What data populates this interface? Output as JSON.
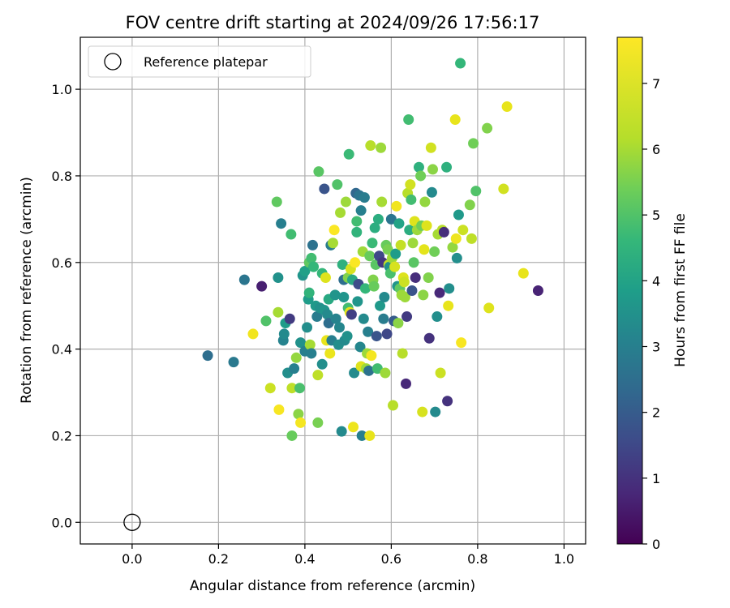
{
  "chart_data": {
    "type": "scatter",
    "title": "FOV centre drift starting at 2024/09/26 17:56:17",
    "xlabel": "Angular distance from reference (arcmin)",
    "ylabel": "Rotation from reference (arcmin)",
    "xlim": [
      -0.12,
      1.05
    ],
    "ylim": [
      -0.05,
      1.12
    ],
    "x_ticks": [
      0.0,
      0.2,
      0.4,
      0.6,
      0.8,
      1.0
    ],
    "y_ticks": [
      0.0,
      0.2,
      0.4,
      0.6,
      0.8,
      1.0
    ],
    "x_tick_labels": [
      "0.0",
      "0.2",
      "0.4",
      "0.6",
      "0.8",
      "1.0"
    ],
    "y_tick_labels": [
      "0.0",
      "0.2",
      "0.4",
      "0.6",
      "0.8",
      "1.0"
    ],
    "grid": true,
    "legend": {
      "placement": "top-left",
      "entries": [
        "Reference platepar"
      ]
    },
    "reference_point": {
      "x": 0.0,
      "y": 0.0,
      "label": "Reference platepar"
    },
    "colorbar": {
      "label": "Hours from first FF file",
      "colormap": "viridis",
      "range": [
        0,
        7.7
      ],
      "ticks": [
        0,
        1,
        2,
        3,
        4,
        5,
        6,
        7
      ],
      "tick_labels": [
        "0",
        "1",
        "2",
        "3",
        "4",
        "5",
        "6",
        "7"
      ]
    },
    "series": [
      {
        "points": [
          [
            0.175,
            0.385,
            2.5
          ],
          [
            0.235,
            0.37,
            2.8
          ],
          [
            0.26,
            0.56,
            2.7
          ],
          [
            0.28,
            0.435,
            7.3
          ],
          [
            0.3,
            0.545,
            0.6
          ],
          [
            0.31,
            0.465,
            5.0
          ],
          [
            0.32,
            0.31,
            6.5
          ],
          [
            0.335,
            0.74,
            5.2
          ],
          [
            0.338,
            0.485,
            6.0
          ],
          [
            0.338,
            0.565,
            3.5
          ],
          [
            0.34,
            0.26,
            7.5
          ],
          [
            0.345,
            0.69,
            3.0
          ],
          [
            0.35,
            0.42,
            3.1
          ],
          [
            0.352,
            0.435,
            3.3
          ],
          [
            0.355,
            0.46,
            3.8
          ],
          [
            0.36,
            0.345,
            3.4
          ],
          [
            0.365,
            0.47,
            1.2
          ],
          [
            0.368,
            0.665,
            4.8
          ],
          [
            0.37,
            0.2,
            5.3
          ],
          [
            0.37,
            0.31,
            6.3
          ],
          [
            0.375,
            0.355,
            3.0
          ],
          [
            0.38,
            0.38,
            5.8
          ],
          [
            0.385,
            0.25,
            5.7
          ],
          [
            0.388,
            0.31,
            4.9
          ],
          [
            0.39,
            0.23,
            7.4
          ],
          [
            0.39,
            0.415,
            3.5
          ],
          [
            0.395,
            0.57,
            3.6
          ],
          [
            0.4,
            0.58,
            3.9
          ],
          [
            0.4,
            0.395,
            3.0
          ],
          [
            0.405,
            0.45,
            3.4
          ],
          [
            0.408,
            0.515,
            3.8
          ],
          [
            0.41,
            0.53,
            4.5
          ],
          [
            0.41,
            0.6,
            5.2
          ],
          [
            0.412,
            0.41,
            6.0
          ],
          [
            0.415,
            0.39,
            3.0
          ],
          [
            0.415,
            0.61,
            4.8
          ],
          [
            0.418,
            0.64,
            2.6
          ],
          [
            0.42,
            0.59,
            4.6
          ],
          [
            0.425,
            0.5,
            3.7
          ],
          [
            0.428,
            0.475,
            2.9
          ],
          [
            0.43,
            0.23,
            5.5
          ],
          [
            0.43,
            0.34,
            6.3
          ],
          [
            0.432,
            0.81,
            5.1
          ],
          [
            0.435,
            0.495,
            3.5
          ],
          [
            0.44,
            0.365,
            3.4
          ],
          [
            0.44,
            0.575,
            4.6
          ],
          [
            0.445,
            0.49,
            3.6
          ],
          [
            0.445,
            0.77,
            1.8
          ],
          [
            0.448,
            0.565,
            6.8
          ],
          [
            0.45,
            0.42,
            7.0
          ],
          [
            0.452,
            0.48,
            3.3
          ],
          [
            0.455,
            0.515,
            4.2
          ],
          [
            0.455,
            0.46,
            2.5
          ],
          [
            0.458,
            0.39,
            7.1
          ],
          [
            0.46,
            0.64,
            2.9
          ],
          [
            0.462,
            0.42,
            3.0
          ],
          [
            0.465,
            0.645,
            6.0
          ],
          [
            0.468,
            0.675,
            7.6
          ],
          [
            0.47,
            0.525,
            3.6
          ],
          [
            0.472,
            0.47,
            3.1
          ],
          [
            0.475,
            0.78,
            5.0
          ],
          [
            0.478,
            0.41,
            3.4
          ],
          [
            0.48,
            0.45,
            3.2
          ],
          [
            0.482,
            0.715,
            6.0
          ],
          [
            0.485,
            0.21,
            3.3
          ],
          [
            0.487,
            0.595,
            4.4
          ],
          [
            0.49,
            0.52,
            3.6
          ],
          [
            0.49,
            0.56,
            2.5
          ],
          [
            0.492,
            0.42,
            3.3
          ],
          [
            0.495,
            0.74,
            5.9
          ],
          [
            0.498,
            0.43,
            3.5
          ],
          [
            0.5,
            0.495,
            4.8
          ],
          [
            0.5,
            0.565,
            5.6
          ],
          [
            0.502,
            0.85,
            4.7
          ],
          [
            0.504,
            0.485,
            6.9
          ],
          [
            0.506,
            0.585,
            6.7
          ],
          [
            0.508,
            0.48,
            1.3
          ],
          [
            0.51,
            0.56,
            4.2
          ],
          [
            0.512,
            0.22,
            7.2
          ],
          [
            0.514,
            0.345,
            3.3
          ],
          [
            0.516,
            0.6,
            7.6
          ],
          [
            0.518,
            0.76,
            2.3
          ],
          [
            0.52,
            0.67,
            4.5
          ],
          [
            0.52,
            0.695,
            4.8
          ],
          [
            0.522,
            0.51,
            3.6
          ],
          [
            0.524,
            0.55,
            1.6
          ],
          [
            0.526,
            0.755,
            2.7
          ],
          [
            0.528,
            0.405,
            3.2
          ],
          [
            0.53,
            0.72,
            3.0
          ],
          [
            0.53,
            0.36,
            6.8
          ],
          [
            0.532,
            0.2,
            3.0
          ],
          [
            0.534,
            0.625,
            5.9
          ],
          [
            0.536,
            0.47,
            3.3
          ],
          [
            0.538,
            0.75,
            2.9
          ],
          [
            0.54,
            0.54,
            4.6
          ],
          [
            0.542,
            0.355,
            5.9
          ],
          [
            0.544,
            0.39,
            5.9
          ],
          [
            0.546,
            0.44,
            3.0
          ],
          [
            0.548,
            0.35,
            2.6
          ],
          [
            0.55,
            0.615,
            5.3
          ],
          [
            0.55,
            0.2,
            7.0
          ],
          [
            0.552,
            0.87,
            6.2
          ],
          [
            0.554,
            0.385,
            7.4
          ],
          [
            0.556,
            0.645,
            4.7
          ],
          [
            0.558,
            0.56,
            5.6
          ],
          [
            0.56,
            0.545,
            5.3
          ],
          [
            0.562,
            0.68,
            4.3
          ],
          [
            0.564,
            0.595,
            5.1
          ],
          [
            0.566,
            0.43,
            1.8
          ],
          [
            0.568,
            0.355,
            4.8
          ],
          [
            0.57,
            0.7,
            4.3
          ],
          [
            0.572,
            0.615,
            1.5
          ],
          [
            0.574,
            0.5,
            3.7
          ],
          [
            0.576,
            0.865,
            5.9
          ],
          [
            0.578,
            0.74,
            6.0
          ],
          [
            0.58,
            0.6,
            1.1
          ],
          [
            0.582,
            0.47,
            2.9
          ],
          [
            0.584,
            0.52,
            3.3
          ],
          [
            0.586,
            0.345,
            5.9
          ],
          [
            0.588,
            0.64,
            5.3
          ],
          [
            0.59,
            0.435,
            1.5
          ],
          [
            0.592,
            0.63,
            5.5
          ],
          [
            0.594,
            0.595,
            6.4
          ],
          [
            0.596,
            0.59,
            3.5
          ],
          [
            0.598,
            0.575,
            4.9
          ],
          [
            0.6,
            0.7,
            2.7
          ],
          [
            0.602,
            0.61,
            5.9
          ],
          [
            0.604,
            0.27,
            6.2
          ],
          [
            0.606,
            0.465,
            2.0
          ],
          [
            0.608,
            0.59,
            6.7
          ],
          [
            0.61,
            0.62,
            3.8
          ],
          [
            0.612,
            0.73,
            7.3
          ],
          [
            0.614,
            0.545,
            3.6
          ],
          [
            0.616,
            0.46,
            5.7
          ],
          [
            0.618,
            0.69,
            4.0
          ],
          [
            0.62,
            0.54,
            5.2
          ],
          [
            0.622,
            0.64,
            6.4
          ],
          [
            0.624,
            0.525,
            5.9
          ],
          [
            0.626,
            0.39,
            6.2
          ],
          [
            0.628,
            0.565,
            6.8
          ],
          [
            0.63,
            0.555,
            6.5
          ],
          [
            0.632,
            0.52,
            5.9
          ],
          [
            0.634,
            0.32,
            0.8
          ],
          [
            0.636,
            0.475,
            1.2
          ],
          [
            0.638,
            0.76,
            6.2
          ],
          [
            0.64,
            0.93,
            4.8
          ],
          [
            0.642,
            0.675,
            4.3
          ],
          [
            0.644,
            0.78,
            6.6
          ],
          [
            0.646,
            0.745,
            4.8
          ],
          [
            0.648,
            0.535,
            1.8
          ],
          [
            0.65,
            0.645,
            5.9
          ],
          [
            0.652,
            0.6,
            5.1
          ],
          [
            0.654,
            0.695,
            6.8
          ],
          [
            0.656,
            0.565,
            0.9
          ],
          [
            0.66,
            0.675,
            5.9
          ],
          [
            0.664,
            0.82,
            4.4
          ],
          [
            0.668,
            0.8,
            5.4
          ],
          [
            0.67,
            0.685,
            5.4
          ],
          [
            0.672,
            0.255,
            6.7
          ],
          [
            0.674,
            0.525,
            5.7
          ],
          [
            0.676,
            0.63,
            6.9
          ],
          [
            0.678,
            0.74,
            5.8
          ],
          [
            0.682,
            0.685,
            6.8
          ],
          [
            0.686,
            0.565,
            5.6
          ],
          [
            0.688,
            0.425,
            1.0
          ],
          [
            0.692,
            0.865,
            6.6
          ],
          [
            0.694,
            0.762,
            3.3
          ],
          [
            0.696,
            0.815,
            5.7
          ],
          [
            0.7,
            0.625,
            5.4
          ],
          [
            0.702,
            0.255,
            3.3
          ],
          [
            0.706,
            0.475,
            3.4
          ],
          [
            0.708,
            0.665,
            6.0
          ],
          [
            0.712,
            0.53,
            0.8
          ],
          [
            0.714,
            0.345,
            6.5
          ],
          [
            0.718,
            0.675,
            6.2
          ],
          [
            0.722,
            0.67,
            0.9
          ],
          [
            0.728,
            0.82,
            4.4
          ],
          [
            0.73,
            0.28,
            1.0
          ],
          [
            0.732,
            0.5,
            7.0
          ],
          [
            0.734,
            0.54,
            3.4
          ],
          [
            0.742,
            0.635,
            5.8
          ],
          [
            0.748,
            0.93,
            7.0
          ],
          [
            0.75,
            0.655,
            7.2
          ],
          [
            0.752,
            0.61,
            3.4
          ],
          [
            0.756,
            0.71,
            3.7
          ],
          [
            0.76,
            1.06,
            4.6
          ],
          [
            0.762,
            0.415,
            7.5
          ],
          [
            0.766,
            0.675,
            6.5
          ],
          [
            0.782,
            0.733,
            5.6
          ],
          [
            0.786,
            0.655,
            6.3
          ],
          [
            0.79,
            0.875,
            5.4
          ],
          [
            0.796,
            0.765,
            5.0
          ],
          [
            0.822,
            0.91,
            5.6
          ],
          [
            0.826,
            0.495,
            6.8
          ],
          [
            0.86,
            0.77,
            6.6
          ],
          [
            0.868,
            0.96,
            7.0
          ],
          [
            0.906,
            0.575,
            7.0
          ],
          [
            0.94,
            0.535,
            0.7
          ]
        ]
      }
    ]
  }
}
